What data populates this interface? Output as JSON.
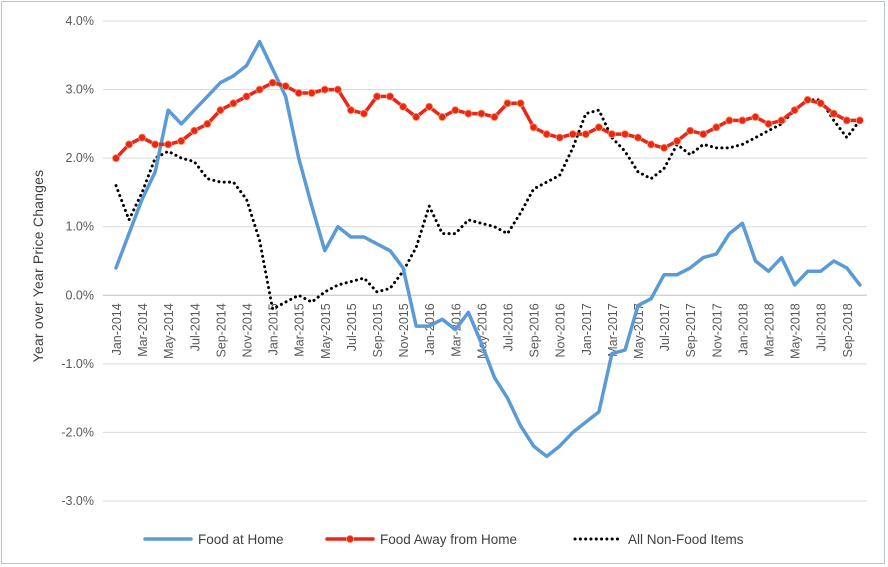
{
  "chart_data": {
    "type": "line",
    "ylabel": "Year over Year Price Changes",
    "xlabel": "",
    "title": "",
    "ylim": [
      -3.0,
      4.0
    ],
    "yticks": [
      4.0,
      3.0,
      2.0,
      1.0,
      0.0,
      -1.0,
      -2.0,
      -3.0
    ],
    "ytick_labels": [
      "4.0%",
      "3.0%",
      "2.0%",
      "1.0%",
      "0.0%",
      "-1.0%",
      "-2.0%",
      "-3.0%"
    ],
    "grid": "horizontal",
    "legend_position": "bottom",
    "categories": [
      "Jan-2014",
      "Feb-2014",
      "Mar-2014",
      "Apr-2014",
      "May-2014",
      "Jun-2014",
      "Jul-2014",
      "Aug-2014",
      "Sep-2014",
      "Oct-2014",
      "Nov-2014",
      "Dec-2014",
      "Jan-2015",
      "Feb-2015",
      "Mar-2015",
      "Apr-2015",
      "May-2015",
      "Jun-2015",
      "Jul-2015",
      "Aug-2015",
      "Sep-2015",
      "Oct-2015",
      "Nov-2015",
      "Dec-2015",
      "Jan-2016",
      "Feb-2016",
      "Mar-2016",
      "Apr-2016",
      "May-2016",
      "Jun-2016",
      "Jul-2016",
      "Aug-2016",
      "Sep-2016",
      "Oct-2016",
      "Nov-2016",
      "Dec-2016",
      "Jan-2017",
      "Feb-2017",
      "Mar-2017",
      "Apr-2017",
      "May-2017",
      "Jun-2017",
      "Jul-2017",
      "Aug-2017",
      "Sep-2017",
      "Oct-2017",
      "Nov-2017",
      "Dec-2017",
      "Jan-2018",
      "Feb-2018",
      "Mar-2018",
      "Apr-2018",
      "May-2018",
      "Jun-2018",
      "Jul-2018",
      "Aug-2018",
      "Sep-2018",
      "Oct-2018"
    ],
    "x_tick_labels": [
      "Jan-2014",
      "Mar-2014",
      "May-2014",
      "Jul-2014",
      "Sep-2014",
      "Nov-2014",
      "Jan-2015",
      "Mar-2015",
      "May-2015",
      "Jul-2015",
      "Sep-2015",
      "Nov-2015",
      "Jan-2016",
      "Mar-2016",
      "May-2016",
      "Jul-2016",
      "Sep-2016",
      "Nov-2016",
      "Jan-2017",
      "Mar-2017",
      "May-2017",
      "Jul-2017",
      "Sep-2017",
      "Nov-2017",
      "Jan-2018",
      "Mar-2018",
      "May-2018",
      "Jul-2018",
      "Sep-2018"
    ],
    "series": [
      {
        "name": "Food at Home",
        "color": "#5b9bd5",
        "style": "solid",
        "values": [
          0.4,
          0.9,
          1.4,
          1.8,
          2.7,
          2.5,
          2.7,
          2.9,
          3.1,
          3.2,
          3.35,
          3.7,
          3.3,
          2.9,
          2.0,
          1.3,
          0.65,
          1.0,
          0.85,
          0.85,
          0.75,
          0.65,
          0.4,
          -0.45,
          -0.45,
          -0.35,
          -0.5,
          -0.25,
          -0.7,
          -1.2,
          -1.5,
          -1.9,
          -2.2,
          -2.35,
          -2.2,
          -2.0,
          -1.85,
          -1.7,
          -0.85,
          -0.8,
          -0.15,
          -0.05,
          0.3,
          0.3,
          0.4,
          0.55,
          0.6,
          0.9,
          1.05,
          0.5,
          0.35,
          0.55,
          0.15,
          0.35,
          0.35,
          0.5,
          0.4,
          0.15
        ]
      },
      {
        "name": "Food Away from Home",
        "color": "#e8261c",
        "style": "solid-markers",
        "values": [
          2.0,
          2.2,
          2.3,
          2.2,
          2.2,
          2.25,
          2.4,
          2.5,
          2.7,
          2.8,
          2.9,
          3.0,
          3.1,
          3.05,
          2.95,
          2.95,
          3.0,
          3.0,
          2.7,
          2.65,
          2.9,
          2.9,
          2.75,
          2.6,
          2.75,
          2.6,
          2.7,
          2.65,
          2.65,
          2.6,
          2.8,
          2.8,
          2.45,
          2.35,
          2.3,
          2.35,
          2.35,
          2.45,
          2.35,
          2.35,
          2.3,
          2.2,
          2.15,
          2.25,
          2.4,
          2.35,
          2.45,
          2.55,
          2.55,
          2.6,
          2.5,
          2.55,
          2.7,
          2.85,
          2.8,
          2.65,
          2.55,
          2.55
        ]
      },
      {
        "name": "All Non-Food Items",
        "color": "#000000",
        "style": "dotted",
        "values": [
          1.6,
          1.1,
          1.5,
          2.0,
          2.1,
          2.0,
          1.95,
          1.7,
          1.65,
          1.65,
          1.4,
          0.8,
          -0.2,
          -0.1,
          0.0,
          -0.1,
          0.05,
          0.15,
          0.2,
          0.25,
          0.05,
          0.1,
          0.35,
          0.7,
          1.3,
          0.9,
          0.9,
          1.1,
          1.05,
          1.0,
          0.9,
          1.2,
          1.55,
          1.65,
          1.75,
          2.15,
          2.65,
          2.7,
          2.3,
          2.1,
          1.8,
          1.7,
          1.85,
          2.2,
          2.05,
          2.2,
          2.15,
          2.15,
          2.2,
          2.3,
          2.4,
          2.5,
          2.7,
          2.85,
          2.85,
          2.55,
          2.3,
          2.55
        ]
      }
    ]
  }
}
